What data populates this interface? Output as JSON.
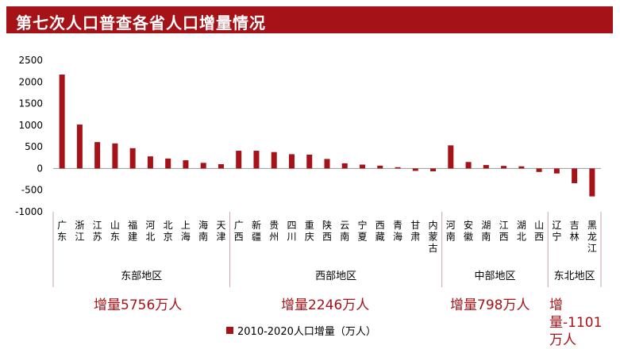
{
  "title": "第七次人口普查各省人口增量情况",
  "colors": {
    "bar": "#a51217",
    "title_bg": "#a51217",
    "axis": "#999999",
    "divider": "#c9a3a3"
  },
  "chart_data": {
    "type": "bar",
    "title": "第七次人口普查各省人口增量情况",
    "ylim": [
      -1000,
      2500
    ],
    "yticks": [
      2500,
      2000,
      1500,
      1000,
      500,
      0,
      -500,
      -1000
    ],
    "categories": [
      "广东",
      "浙江",
      "江苏",
      "山东",
      "福建",
      "河北",
      "北京",
      "上海",
      "海南",
      "天津",
      "广西",
      "新疆",
      "贵州",
      "四川",
      "重庆",
      "陕西",
      "云南",
      "宁夏",
      "西藏",
      "青海",
      "甘肃",
      "内蒙古",
      "河南",
      "安徽",
      "湖南",
      "江西",
      "湖北",
      "山西",
      "辽宁",
      "吉林",
      "黑龙江"
    ],
    "series": [
      {
        "name": "2010-2020人口增量（万人）",
        "values": [
          2170,
          1015,
          610,
          580,
          470,
          280,
          230,
          190,
          130,
          100,
          410,
          410,
          380,
          330,
          320,
          220,
          120,
          90,
          65,
          30,
          -55,
          -65,
          534,
          150,
          80,
          60,
          50,
          -80,
          -115,
          -340,
          -645
        ]
      }
    ],
    "groups": [
      {
        "label": "东部地区",
        "count": 10
      },
      {
        "label": "西部地区",
        "count": 12
      },
      {
        "label": "中部地区",
        "count": 6
      },
      {
        "label": "东北地区",
        "count": 3
      }
    ],
    "legend_position": "bottom",
    "grid": false
  },
  "region_totals": [
    {
      "text": "增量5756万人"
    },
    {
      "text": "增量2246万人"
    },
    {
      "text": "增量798万人"
    },
    {
      "text": "增量-1101\n万人"
    }
  ],
  "legend": {
    "label": "2010-2020人口增量（万人）"
  }
}
